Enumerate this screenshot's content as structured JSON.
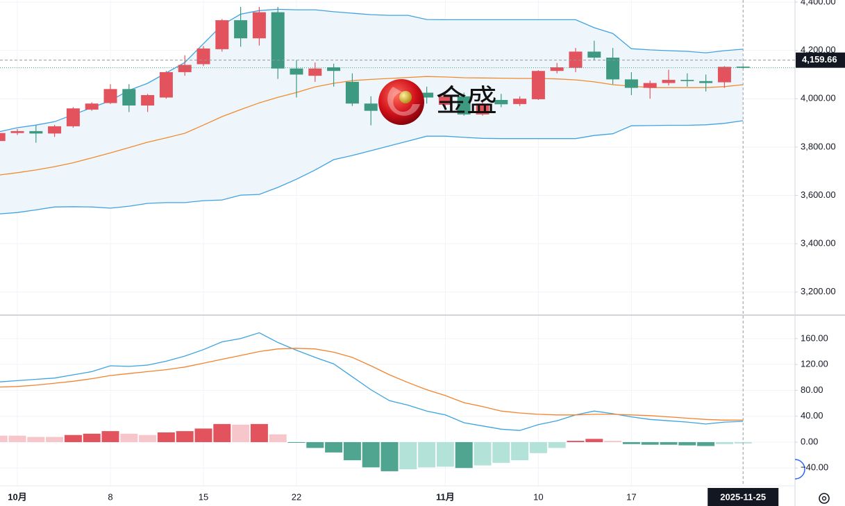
{
  "watermark": "金盛",
  "chart_data": [
    {
      "type": "candlestick",
      "categories": [
        null,
        "10月",
        null,
        null,
        null,
        null,
        "8",
        null,
        null,
        null,
        null,
        "15",
        null,
        null,
        null,
        null,
        "22",
        null,
        null,
        null,
        null,
        null,
        null,
        null,
        "11月",
        null,
        null,
        null,
        null,
        "10",
        null,
        null,
        null,
        null,
        "17",
        null,
        null,
        null,
        null,
        null,
        "2025-11-25"
      ],
      "open": [
        3825,
        3858,
        3866,
        3856,
        3886,
        3955,
        3982,
        4040,
        3972,
        4005,
        4110,
        4143,
        4205,
        4325,
        4250,
        4358,
        4125,
        4095,
        4130,
        4070,
        3980,
        3975,
        3960,
        4025,
        3975,
        4010,
        3935,
        3995,
        3978,
        3998,
        4115,
        4128,
        4195,
        4170,
        4080,
        4045,
        4065,
        4078,
        4073,
        4068,
        4133
      ],
      "high": [
        3865,
        3875,
        3890,
        3892,
        3965,
        3985,
        4060,
        4060,
        4020,
        4115,
        4180,
        4218,
        4330,
        4380,
        4380,
        4380,
        4160,
        4150,
        4145,
        4105,
        4010,
        4035,
        4030,
        4050,
        4020,
        4025,
        3990,
        4020,
        4010,
        4118,
        4148,
        4210,
        4240,
        4210,
        4110,
        4075,
        4120,
        4105,
        4100,
        4135,
        4135
      ],
      "low": [
        3820,
        3850,
        3818,
        3842,
        3880,
        3950,
        3978,
        3945,
        3945,
        4000,
        4095,
        4135,
        4195,
        4215,
        4220,
        4082,
        4005,
        4070,
        4050,
        3970,
        3890,
        3960,
        3950,
        3980,
        3965,
        3930,
        3930,
        3965,
        3970,
        3995,
        4105,
        4110,
        4160,
        4060,
        4015,
        4000,
        4055,
        4050,
        4030,
        4045,
        4125
      ],
      "close": [
        3858,
        3866,
        3856,
        3886,
        3960,
        3980,
        4040,
        3972,
        4015,
        4110,
        4140,
        4208,
        4325,
        4250,
        4358,
        4125,
        4100,
        4125,
        4115,
        3980,
        3950,
        4025,
        4020,
        4005,
        4010,
        3935,
        3980,
        3977,
        4000,
        4115,
        4130,
        4195,
        4170,
        4080,
        4045,
        4065,
        4078,
        4073,
        4065,
        4132,
        4128
      ],
      "up_color": "#e3535d",
      "down_color": "#3d9a80",
      "bands": {
        "upper": [
          3863,
          3880,
          3891,
          3905,
          3934,
          3963,
          3992,
          4035,
          4064,
          4107,
          4150,
          4228,
          4305,
          4350,
          4365,
          4370,
          4368,
          4368,
          4360,
          4354,
          4348,
          4345,
          4345,
          4328,
          4327,
          4327,
          4327,
          4327,
          4327,
          4327,
          4327,
          4327,
          4294,
          4270,
          4207,
          4202,
          4199,
          4196,
          4190,
          4199,
          4205
        ],
        "middle": [
          3684,
          3694,
          3705,
          3719,
          3735,
          3755,
          3776,
          3798,
          3820,
          3838,
          3857,
          3891,
          3926,
          3955,
          3983,
          4006,
          4026,
          4049,
          4064,
          4075,
          4080,
          4084,
          4088,
          4092,
          4090,
          4087,
          4086,
          4085,
          4084,
          4084,
          4082,
          4078,
          4070,
          4058,
          4052,
          4046,
          4046,
          4046,
          4046,
          4050,
          4058
        ],
        "lower": [
          3523,
          3529,
          3540,
          3552,
          3553,
          3552,
          3547,
          3555,
          3567,
          3570,
          3570,
          3578,
          3581,
          3601,
          3604,
          3633,
          3667,
          3705,
          3748,
          3765,
          3785,
          3805,
          3825,
          3845,
          3845,
          3840,
          3836,
          3835,
          3835,
          3835,
          3835,
          3835,
          3848,
          3855,
          3888,
          3889,
          3890,
          3890,
          3892,
          3898,
          3909
        ],
        "color": "#3fa2e2",
        "middle_color": "#f28a2c",
        "fill": "#eef6fc"
      },
      "ylim": [
        3107.3,
        4408.6
      ],
      "yticks": [
        {
          "value": 4400,
          "label": "4,400.00"
        },
        {
          "value": 4200,
          "label": "4,200.00"
        },
        {
          "value": 4000,
          "label": "4,000.00"
        },
        {
          "value": 3800,
          "label": "3,800.00"
        },
        {
          "value": 3600,
          "label": "3,600.00"
        },
        {
          "value": 3400,
          "label": "3,400.00"
        },
        {
          "value": 3200,
          "label": "3,200.00"
        }
      ],
      "crosshair_price": {
        "value": 4159.66,
        "label": "4,159.66"
      },
      "grid": true
    },
    {
      "type": "macd",
      "series": [
        {
          "color": "#3aa3e0",
          "values": [
            93,
            95,
            97,
            99,
            104,
            109,
            118,
            117,
            119,
            125,
            133,
            143,
            155,
            160,
            169,
            154,
            142,
            131,
            121,
            101,
            81,
            64,
            57,
            48,
            42,
            30,
            25,
            20,
            18,
            27,
            33,
            42,
            48,
            44,
            39,
            35,
            33,
            31,
            28,
            31,
            32
          ]
        },
        {
          "color": "#f5822a",
          "values": [
            85,
            86,
            88,
            91,
            94,
            98,
            103,
            106,
            109,
            112,
            116,
            122,
            128,
            134,
            140,
            144,
            145,
            144,
            139,
            131,
            118,
            104,
            92,
            81,
            72,
            61,
            55,
            48,
            45,
            43,
            42,
            42,
            43,
            43,
            42,
            41,
            39,
            37,
            35,
            34,
            34
          ]
        }
      ],
      "histogram": [
        10,
        10,
        8,
        8,
        11,
        13,
        17,
        13,
        11,
        15,
        17,
        21,
        28,
        27,
        28,
        12,
        -1,
        -9,
        -16,
        -28,
        -39,
        -45,
        -42,
        -39,
        -38,
        -40,
        -36,
        -32,
        -28,
        -17,
        -9,
        2,
        5,
        2,
        -3,
        -4,
        -4,
        -5,
        -6,
        -3,
        -2
      ],
      "histogram_colors": {
        "pos_grow": "#e3535d",
        "pos_fall": "#f6c6ca",
        "neg_grow": "#4fa58f",
        "neg_fall": "#b3e2d8"
      },
      "ylim": [
        -67.6,
        195.2
      ],
      "yticks": [
        {
          "value": 160,
          "label": "160.00"
        },
        {
          "value": 120,
          "label": "120.00"
        },
        {
          "value": 80,
          "label": "80.00"
        },
        {
          "value": 40,
          "label": "40.00"
        },
        {
          "value": 0,
          "label": "0.00"
        },
        {
          "value": -40,
          "label": "−40.00"
        }
      ],
      "grid": true
    }
  ]
}
